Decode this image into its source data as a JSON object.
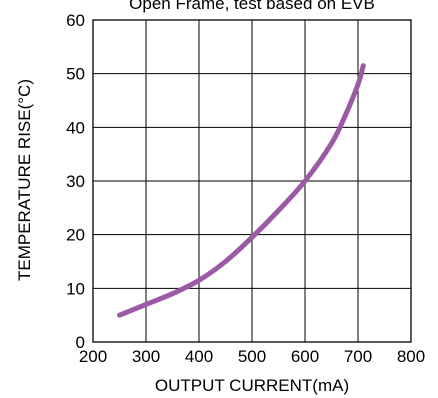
{
  "chart_data": {
    "type": "line",
    "title": "Open Frame, test based on EVB",
    "xlabel": "OUTPUT CURRENT(mA)",
    "ylabel": "TEMPERATURE RISE(°C)",
    "xlim": [
      200,
      800
    ],
    "ylim": [
      0,
      60
    ],
    "xticks": [
      "200",
      "300",
      "400",
      "500",
      "600",
      "700",
      "800"
    ],
    "yticks": [
      "0",
      "10",
      "20",
      "30",
      "40",
      "50",
      "60"
    ],
    "grid": true,
    "series": [
      {
        "color": "#9b59a6",
        "x": [
          250,
          300,
          350,
          400,
          450,
          500,
          550,
          600,
          650,
          675,
          700,
          710
        ],
        "y": [
          5,
          7,
          9,
          11.5,
          15,
          19.5,
          24.5,
          30,
          37,
          42,
          48,
          51.5
        ]
      }
    ]
  }
}
